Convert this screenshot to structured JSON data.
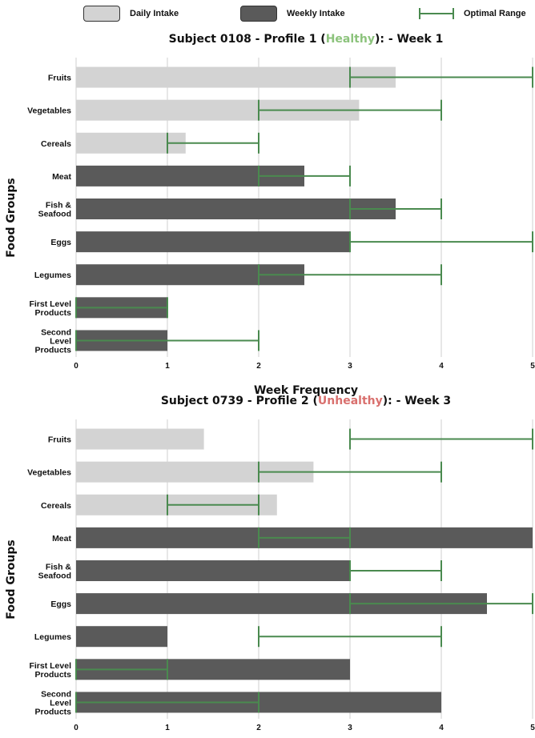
{
  "legend": {
    "daily_label": "Daily Intake",
    "weekly_label": "Weekly Intake",
    "range_label": "Optimal Range"
  },
  "colors": {
    "daily": "#d3d3d3",
    "weekly": "#5a5a5a",
    "range": "#4a8a4f",
    "healthy": "#8cc37c",
    "unhealthy": "#d9706e",
    "grid": "#cfcfcf"
  },
  "chart_data": [
    {
      "type": "bar",
      "orientation": "horizontal",
      "title_parts": [
        "Subject 0108 - Profile 1 (",
        "Healthy",
        "): - Week 1"
      ],
      "title_status": "healthy",
      "xlabel": "Week Frequency",
      "ylabel": "Food Groups",
      "xlim": [
        0,
        5
      ],
      "xticks": [
        "0",
        "1",
        "2",
        "3",
        "4",
        "5"
      ],
      "grid": true,
      "categories": [
        [
          "Fruits"
        ],
        [
          "Vegetables"
        ],
        [
          "Cereals"
        ],
        [
          "Meat"
        ],
        [
          "Fish &",
          "Seafood"
        ],
        [
          "Eggs"
        ],
        [
          "Legumes"
        ],
        [
          "First Level",
          "Products"
        ],
        [
          "Second",
          "Level",
          "Products"
        ]
      ],
      "intake_type": [
        "daily",
        "daily",
        "daily",
        "weekly",
        "weekly",
        "weekly",
        "weekly",
        "weekly",
        "weekly"
      ],
      "values": [
        3.5,
        3.1,
        1.2,
        2.5,
        3.5,
        3.0,
        2.5,
        1.0,
        1.0
      ],
      "optimal_range": [
        [
          3,
          5
        ],
        [
          2,
          4
        ],
        [
          1,
          2
        ],
        [
          2,
          3
        ],
        [
          3,
          4
        ],
        [
          3,
          5
        ],
        [
          2,
          4
        ],
        [
          0,
          1
        ],
        [
          0,
          2
        ]
      ]
    },
    {
      "type": "bar",
      "orientation": "horizontal",
      "title_parts": [
        "Subject 0739 - Profile 2 (",
        "Unhealthy",
        "): - Week 3"
      ],
      "title_status": "unhealthy",
      "xlabel": "Week Frequency",
      "ylabel": "Food Groups",
      "xlim": [
        0,
        5
      ],
      "xticks": [
        "0",
        "1",
        "2",
        "3",
        "4",
        "5"
      ],
      "grid": true,
      "categories": [
        [
          "Fruits"
        ],
        [
          "Vegetables"
        ],
        [
          "Cereals"
        ],
        [
          "Meat"
        ],
        [
          "Fish &",
          "Seafood"
        ],
        [
          "Eggs"
        ],
        [
          "Legumes"
        ],
        [
          "First Level",
          "Products"
        ],
        [
          "Second",
          "Level",
          "Products"
        ]
      ],
      "intake_type": [
        "daily",
        "daily",
        "daily",
        "weekly",
        "weekly",
        "weekly",
        "weekly",
        "weekly",
        "weekly"
      ],
      "values": [
        1.4,
        2.6,
        2.2,
        5.0,
        3.0,
        4.5,
        1.0,
        3.0,
        4.0
      ],
      "optimal_range": [
        [
          3,
          5
        ],
        [
          2,
          4
        ],
        [
          1,
          2
        ],
        [
          2,
          3
        ],
        [
          3,
          4
        ],
        [
          3,
          5
        ],
        [
          2,
          4
        ],
        [
          0,
          1
        ],
        [
          0,
          2
        ]
      ]
    }
  ]
}
